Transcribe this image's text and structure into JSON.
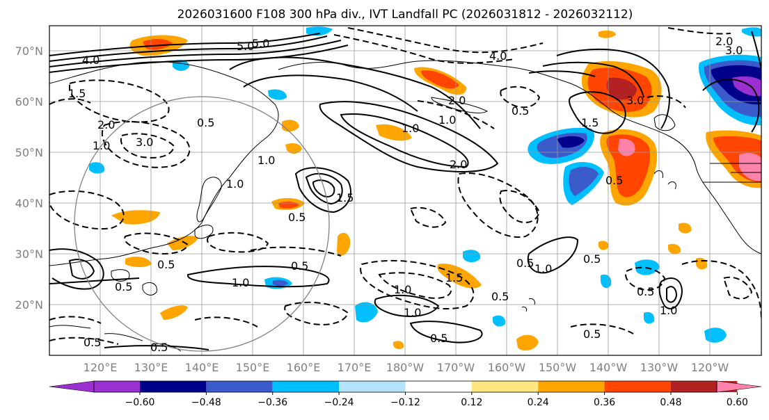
{
  "figure": {
    "title": "2026031600 F108 300 hPa div., IVT Landfall PC (2026031812 - 2026032112)"
  },
  "map": {
    "lat_labels": [
      "70°N",
      "60°N",
      "50°N",
      "40°N",
      "30°N",
      "20°N"
    ],
    "lon_labels": [
      "120°E",
      "130°E",
      "140°E",
      "150°E",
      "160°E",
      "170°E",
      "180°W",
      "170°W",
      "160°W",
      "150°W",
      "140°W",
      "130°W",
      "120°W"
    ],
    "contour_labels": [
      "4.0",
      "5.0",
      "3.0",
      "2.0",
      "1.5",
      "1.0",
      "2.0",
      "1.5",
      "0.5",
      "1.0",
      "0.5",
      "1.0",
      "0.5",
      "1.0",
      "0.5",
      "1.5",
      "1.0",
      "0.5",
      "0.5",
      "1.0",
      "0.5",
      "1.0",
      "2.0",
      "2.0",
      "1.0",
      "3.0",
      "1.5",
      "0.5",
      "0.5",
      "1.0",
      "0.5",
      "0.5",
      "0.5",
      "1.0",
      "0.5",
      "0.5",
      "0.5",
      "4.0",
      "3.0",
      "5.0"
    ]
  },
  "colorbar": {
    "tick_labels": [
      "−0.60",
      "−0.48",
      "−0.36",
      "−0.24",
      "−0.12",
      "0.12",
      "0.24",
      "0.36",
      "0.48",
      "0.60"
    ],
    "colors": [
      "#9b30d0",
      "#00008b",
      "#3a5bc9",
      "#00bfff",
      "#b3e3fa",
      "#ffffff",
      "#ffe680",
      "#ffa500",
      "#ff4500",
      "#b22222",
      "#ff82ab"
    ]
  }
}
